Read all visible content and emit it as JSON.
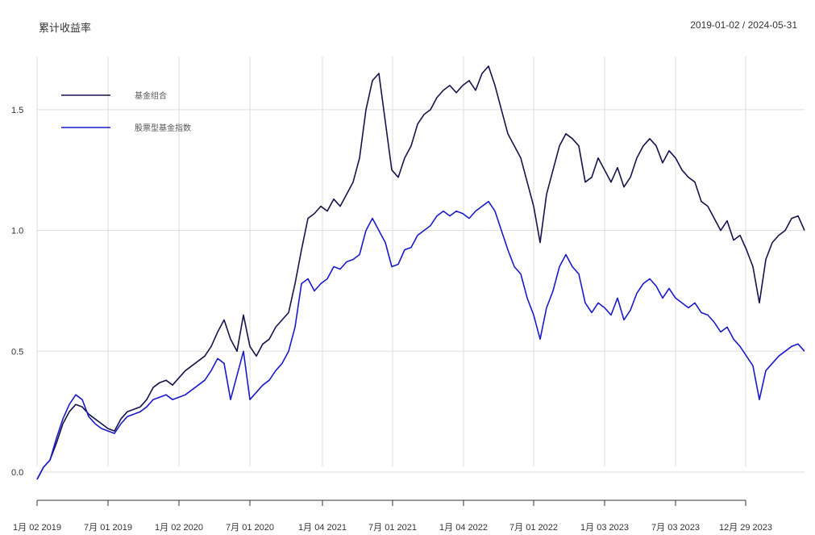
{
  "chart_data": {
    "type": "line",
    "title": "累计收益率",
    "date_range": "2019-01-02 / 2024-05-31",
    "ylim": [
      -0.05,
      1.72
    ],
    "y_ticks": [
      0.0,
      0.5,
      1.0,
      1.5
    ],
    "y_tick_labels": [
      "0.0",
      "0.5",
      "1.0",
      "1.5"
    ],
    "x_ticks": [
      "1月 02 2019",
      "7月 01 2019",
      "1月 02 2020",
      "7月 01 2020",
      "1月 04 2021",
      "7月 01 2021",
      "1月 04 2022",
      "7月 01 2022",
      "1月 03 2023",
      "7月 03 2023",
      "12月 29 2023"
    ],
    "grid": true,
    "legend": "top-left",
    "colors": {
      "fund": "#14144a",
      "index": "#1a1acc",
      "grid": "#dddddd"
    },
    "series": [
      {
        "name": "基金组合",
        "color": "#14144a",
        "values": [
          -0.03,
          0.02,
          0.05,
          0.12,
          0.2,
          0.25,
          0.28,
          0.27,
          0.24,
          0.22,
          0.2,
          0.18,
          0.17,
          0.22,
          0.25,
          0.26,
          0.27,
          0.3,
          0.35,
          0.37,
          0.38,
          0.36,
          0.39,
          0.42,
          0.44,
          0.46,
          0.48,
          0.52,
          0.58,
          0.63,
          0.55,
          0.5,
          0.65,
          0.52,
          0.48,
          0.53,
          0.55,
          0.6,
          0.63,
          0.66,
          0.78,
          0.92,
          1.05,
          1.07,
          1.1,
          1.08,
          1.13,
          1.1,
          1.15,
          1.2,
          1.3,
          1.5,
          1.62,
          1.65,
          1.45,
          1.25,
          1.22,
          1.3,
          1.35,
          1.44,
          1.48,
          1.5,
          1.55,
          1.58,
          1.6,
          1.57,
          1.6,
          1.62,
          1.58,
          1.65,
          1.68,
          1.6,
          1.5,
          1.4,
          1.35,
          1.3,
          1.2,
          1.1,
          0.95,
          1.15,
          1.25,
          1.35,
          1.4,
          1.38,
          1.35,
          1.2,
          1.22,
          1.3,
          1.25,
          1.2,
          1.26,
          1.18,
          1.22,
          1.3,
          1.35,
          1.38,
          1.35,
          1.28,
          1.33,
          1.3,
          1.25,
          1.22,
          1.2,
          1.12,
          1.1,
          1.05,
          1.0,
          1.04,
          0.96,
          0.98,
          0.92,
          0.85,
          0.7,
          0.88,
          0.95,
          0.98,
          1.0,
          1.05,
          1.06,
          1.0
        ]
      },
      {
        "name": "股票型基金指数",
        "color": "#1a1acc",
        "values": [
          -0.03,
          0.02,
          0.05,
          0.14,
          0.22,
          0.28,
          0.32,
          0.3,
          0.23,
          0.2,
          0.18,
          0.17,
          0.16,
          0.2,
          0.23,
          0.24,
          0.25,
          0.27,
          0.3,
          0.31,
          0.32,
          0.3,
          0.31,
          0.32,
          0.34,
          0.36,
          0.38,
          0.42,
          0.47,
          0.45,
          0.3,
          0.4,
          0.5,
          0.3,
          0.33,
          0.36,
          0.38,
          0.42,
          0.45,
          0.5,
          0.6,
          0.78,
          0.8,
          0.75,
          0.78,
          0.8,
          0.85,
          0.84,
          0.87,
          0.88,
          0.9,
          1.0,
          1.05,
          1.0,
          0.95,
          0.85,
          0.86,
          0.92,
          0.93,
          0.98,
          1.0,
          1.02,
          1.06,
          1.08,
          1.06,
          1.08,
          1.07,
          1.05,
          1.08,
          1.1,
          1.12,
          1.08,
          1.0,
          0.92,
          0.85,
          0.82,
          0.72,
          0.65,
          0.55,
          0.68,
          0.75,
          0.85,
          0.9,
          0.85,
          0.82,
          0.7,
          0.66,
          0.7,
          0.68,
          0.65,
          0.72,
          0.63,
          0.67,
          0.74,
          0.78,
          0.8,
          0.77,
          0.72,
          0.76,
          0.72,
          0.7,
          0.68,
          0.7,
          0.66,
          0.65,
          0.62,
          0.58,
          0.6,
          0.55,
          0.52,
          0.48,
          0.44,
          0.3,
          0.42,
          0.45,
          0.48,
          0.5,
          0.52,
          0.53,
          0.5
        ]
      }
    ]
  }
}
